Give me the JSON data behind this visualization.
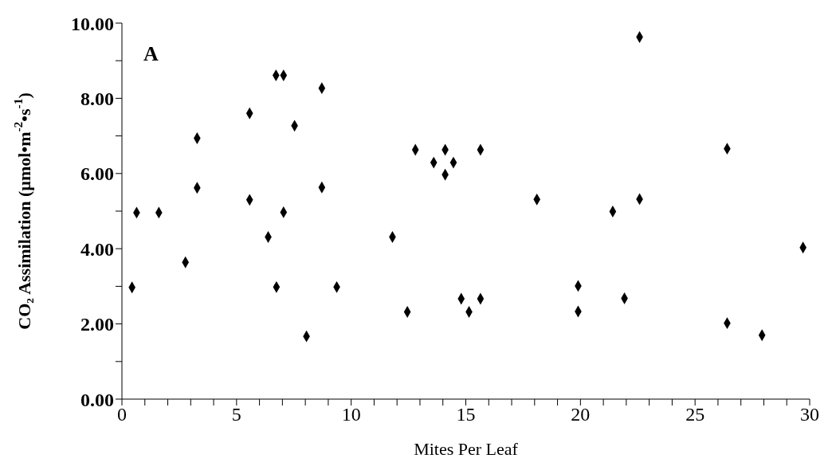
{
  "chart_data": {
    "type": "scatter",
    "title": "A",
    "xlabel": "Mites Per Leaf",
    "ylabel": "CO₂ Assimilation (µmol•m$^{-2}$•s$^{-1}$)",
    "x": [
      0.44,
      0.64,
      1.61,
      2.77,
      3.28,
      3.28,
      5.57,
      5.57,
      6.38,
      6.72,
      7.05,
      6.74,
      7.05,
      7.53,
      8.05,
      8.72,
      8.72,
      9.37,
      11.8,
      12.45,
      12.8,
      13.6,
      14.1,
      14.46,
      14.1,
      15.64,
      18.1,
      21.41,
      22.58,
      22.58,
      26.4,
      29.71,
      19.9,
      19.9,
      21.92,
      14.8,
      15.14,
      15.64,
      26.4,
      27.92
    ],
    "series": [
      {
        "color": "#000000",
        "values": [
          2.97,
          4.96,
          4.96,
          3.64,
          6.94,
          5.62,
          7.6,
          5.3,
          4.31,
          8.61,
          8.61,
          2.98,
          4.97,
          7.27,
          1.67,
          8.27,
          5.63,
          2.98,
          4.31,
          2.32,
          6.63,
          6.29,
          6.63,
          6.29,
          5.97,
          6.63,
          5.31,
          4.99,
          5.32,
          9.63,
          6.66,
          4.03,
          3.01,
          2.33,
          2.68,
          2.67,
          2.32,
          2.67,
          2.02,
          1.7
        ]
      }
    ],
    "xlim": [
      0,
      30
    ],
    "xticks": [
      0,
      {
        "value": 1,
        "label": null
      },
      {
        "value": 2,
        "label": null
      },
      {
        "value": 3,
        "label": null
      },
      {
        "value": 4,
        "label": null
      },
      5,
      {
        "value": 6,
        "label": null
      },
      {
        "value": 7,
        "label": null
      },
      {
        "value": 8,
        "label": null
      },
      {
        "value": 9,
        "label": null
      },
      10,
      {
        "value": 11,
        "label": null
      },
      {
        "value": 12,
        "label": null
      },
      {
        "value": 13,
        "label": null
      },
      {
        "value": 14,
        "label": null
      },
      15,
      {
        "value": 16,
        "label": null
      },
      {
        "value": 17,
        "label": null
      },
      {
        "value": 18,
        "label": null
      },
      {
        "value": 19,
        "label": null
      },
      20,
      {
        "value": 21,
        "label": null
      },
      {
        "value": 22,
        "label": null
      },
      {
        "value": 23,
        "label": null
      },
      {
        "value": 24,
        "label": null
      },
      25,
      {
        "value": 26,
        "label": null
      },
      {
        "value": 27,
        "label": null
      },
      {
        "value": 28,
        "label": null
      },
      {
        "value": 29,
        "label": null
      },
      30
    ],
    "ylim": [
      0,
      10
    ],
    "yticks": [
      {
        "value": 0,
        "label": "0.00"
      },
      {
        "value": 1,
        "label": null
      },
      {
        "value": 2,
        "label": "2.00"
      },
      {
        "value": 3,
        "label": null
      },
      {
        "value": 4,
        "label": "4.00"
      },
      {
        "value": 5,
        "label": null
      },
      {
        "value": 6,
        "label": "6.00"
      },
      {
        "value": 7,
        "label": null
      },
      {
        "value": 8,
        "label": "8.00"
      },
      {
        "value": 9,
        "label": null
      },
      {
        "value": 10,
        "label": "10.00"
      }
    ],
    "grid": false,
    "legend": false,
    "marker": "diamond"
  }
}
